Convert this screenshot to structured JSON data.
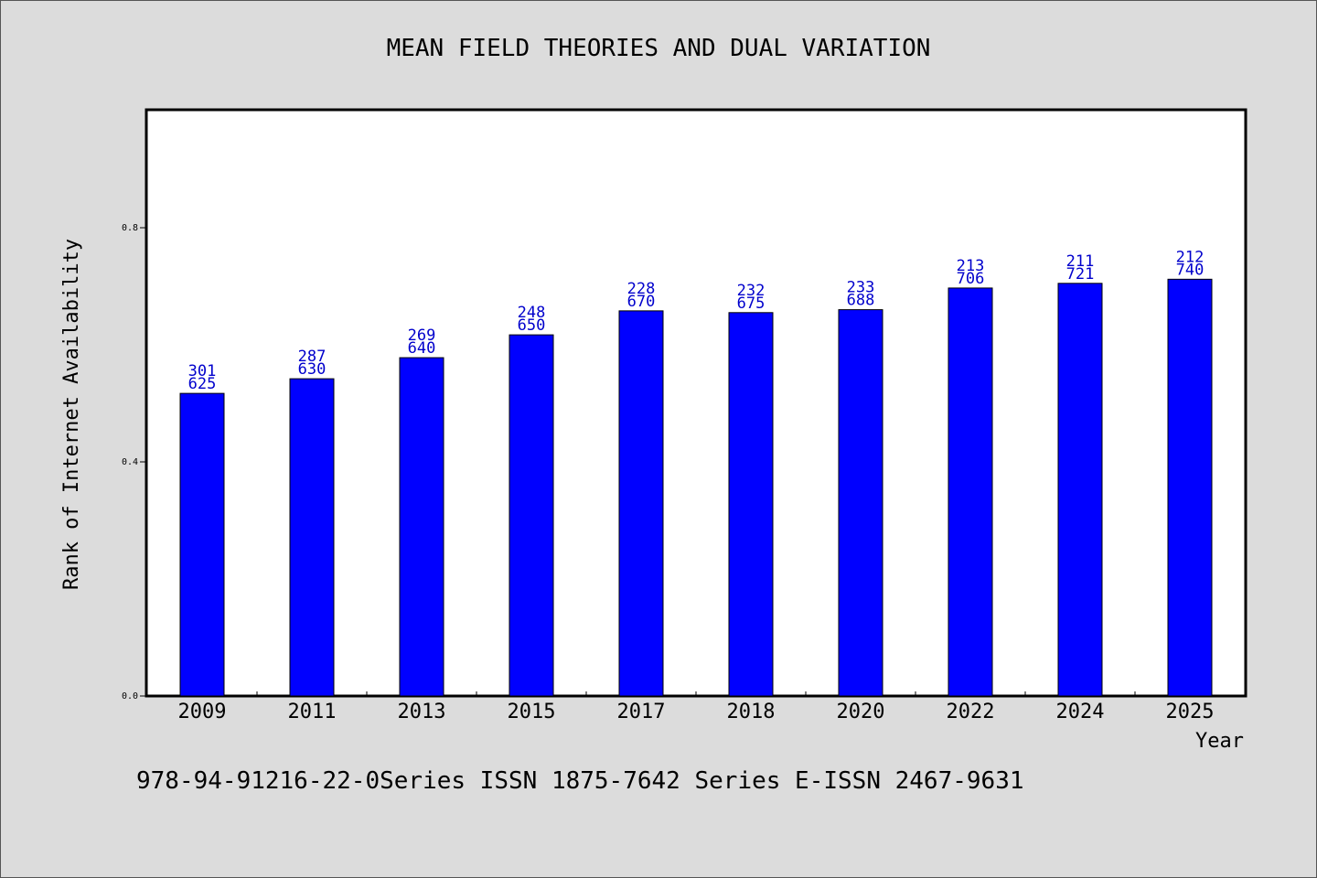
{
  "chart_data": {
    "type": "bar",
    "title": "MEAN FIELD THEORIES AND DUAL VARIATION",
    "xlabel": "Year",
    "ylabel": "Rank of Internet Availability",
    "categories": [
      "2009",
      "2011",
      "2013",
      "2015",
      "2017",
      "2018",
      "2020",
      "2022",
      "2024",
      "2025"
    ],
    "values": [
      0.517,
      0.542,
      0.578,
      0.617,
      0.658,
      0.655,
      0.66,
      0.697,
      0.705,
      0.712
    ],
    "bar_labels_top": [
      "301",
      "287",
      "269",
      "248",
      "228",
      "232",
      "233",
      "213",
      "211",
      "212"
    ],
    "bar_labels_bottom": [
      "625",
      "630",
      "640",
      "650",
      "670",
      "675",
      "688",
      "706",
      "721",
      "740"
    ],
    "y_ticks": [
      0.0,
      0.4,
      0.8
    ],
    "y_tick_labels": [
      "0.0",
      "0.4",
      "0.8"
    ],
    "ylim": [
      0.0,
      1.0
    ],
    "grid": false,
    "legend": false,
    "footnote": "978-94-91216-22-0Series ISSN 1875-7642 Series E-ISSN 2467-9631",
    "colors": {
      "background": "#dcdcdc",
      "plot_background": "#ffffff",
      "bar_fill": "#0000ff",
      "bar_label": "#0000cc",
      "text": "#000000"
    }
  }
}
